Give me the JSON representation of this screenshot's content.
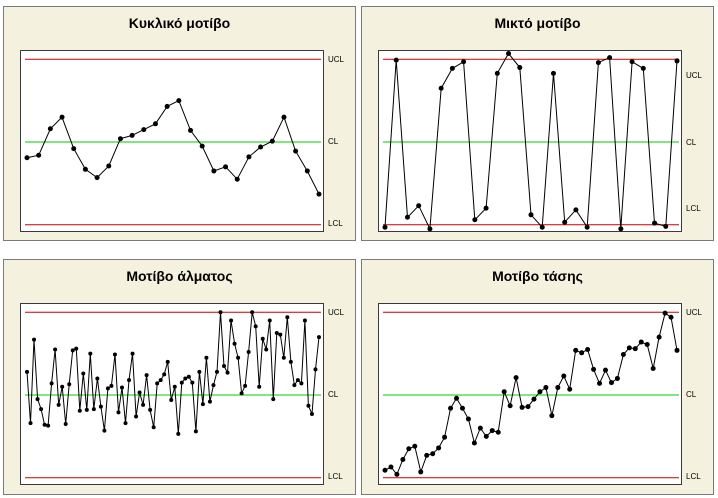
{
  "colors": {
    "limit": "#cc0000",
    "center": "#00cc00",
    "series": "#000000",
    "panel_bg": "#f5f1df"
  },
  "chart_data": [
    {
      "type": "line",
      "title": "Κυκλικό μοτίβο",
      "labels": {
        "ucl": "UCL",
        "cl": "CL",
        "lcl": "LCL"
      },
      "limits": {
        "ucl": 10,
        "cl": 0,
        "lcl": -10
      },
      "ylim": [
        -11,
        11
      ],
      "values": [
        -1.9,
        -1.6,
        1.6,
        3.0,
        -0.8,
        -3.3,
        -4.3,
        -2.9,
        0.4,
        0.8,
        1.5,
        2.2,
        4.3,
        5.0,
        1.4,
        -0.5,
        -3.5,
        -3.0,
        -4.5,
        -1.8,
        -0.6,
        0.1,
        3.0,
        -1.1,
        -3.5,
        -6.3
      ]
    },
    {
      "type": "line",
      "title": "Μικτό μοτίβο",
      "labels": {
        "ucl": "UCL",
        "cl": "CL",
        "lcl": "LCL"
      },
      "limits": {
        "ucl": 10,
        "cl": 0,
        "lcl": -10
      },
      "ylim": [
        -11,
        11
      ],
      "values": [
        -10.3,
        9.9,
        -9.1,
        -7.7,
        -10.5,
        6.5,
        8.9,
        9.7,
        -9.4,
        -8.0,
        8.3,
        10.7,
        9.0,
        -8.8,
        -10.3,
        8.3,
        -9.7,
        -8.2,
        -10.3,
        9.6,
        10.2,
        -10.5,
        9.7,
        8.9,
        -9.8,
        -10.2,
        9.8
      ]
    },
    {
      "type": "line",
      "title": "Μοτίβο άλματος",
      "labels": {
        "ucl": "UCL",
        "cl": "CL",
        "lcl": "LCL"
      },
      "limits": {
        "ucl": 10,
        "cl": 0,
        "lcl": -10
      },
      "ylim": [
        -11,
        11
      ],
      "values": [
        2.8,
        -3.4,
        6.7,
        -0.5,
        -1.7,
        -3.6,
        -3.7,
        1.4,
        5.5,
        -1.2,
        1.0,
        -3.5,
        1.3,
        5.4,
        5.6,
        -1.9,
        2.6,
        -1.8,
        5.0,
        -1.7,
        2.0,
        -1.4,
        -4.3,
        0.8,
        1.1,
        4.9,
        -2.1,
        0.9,
        -3.4,
        1.8,
        5.0,
        -2.6,
        0.3,
        -1.2,
        2.4,
        -1.8,
        -3.9,
        1.4,
        1.8,
        2.5,
        4.0,
        -0.6,
        1.0,
        -4.7,
        1.5,
        2.0,
        2.2,
        1.5,
        -4.4,
        2.8,
        -1.1,
        4.5,
        -0.8,
        1.2,
        2.8,
        10.0,
        3.5,
        2.7,
        9.0,
        6.2,
        4.5,
        0.2,
        1.1,
        5.2,
        10.0,
        8.3,
        1.0,
        6.8,
        5.5,
        9.0,
        -0.5,
        7.5,
        7.3,
        4.5,
        9.4,
        4.0,
        1.2,
        1.8,
        1.4,
        9.0,
        -1.3,
        -2.3,
        3.1,
        7.0
      ]
    },
    {
      "type": "line",
      "title": "Μοτίβο τάσης",
      "labels": {
        "ucl": "UCL",
        "cl": "CL",
        "lcl": "LCL"
      },
      "limits": {
        "ucl": 10,
        "cl": 0,
        "lcl": -10
      },
      "ylim": [
        -11,
        11
      ],
      "values": [
        -9.1,
        -8.7,
        -9.6,
        -7.8,
        -6.5,
        -6.2,
        -9.3,
        -7.3,
        -7.1,
        -6.4,
        -5.1,
        -1.6,
        -0.4,
        -1.6,
        -2.9,
        -5.8,
        -4.0,
        -5.0,
        -4.3,
        -4.5,
        0.4,
        -1.3,
        2.1,
        -1.5,
        -1.4,
        -0.5,
        0.4,
        0.9,
        -2.5,
        0.9,
        2.3,
        0.7,
        5.4,
        5.1,
        5.5,
        3.1,
        1.4,
        3.0,
        1.5,
        2.0,
        4.9,
        5.7,
        5.6,
        6.4,
        6.1,
        3.2,
        7.0,
        9.9,
        9.4,
        5.4
      ]
    }
  ]
}
